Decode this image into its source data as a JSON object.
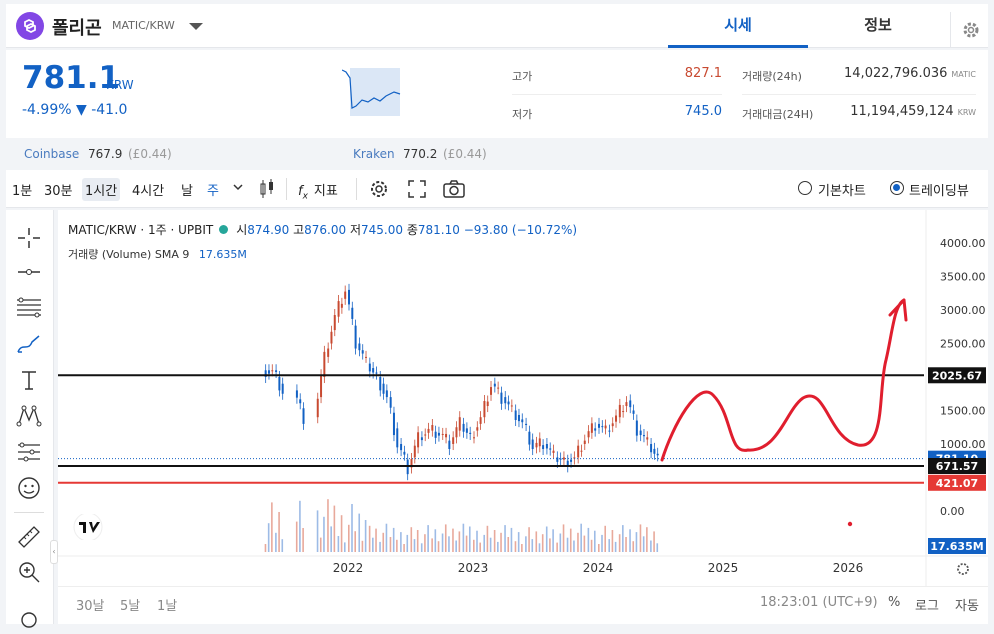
{
  "header": {
    "coin_name": "폴리곤",
    "pair": "MATIC/KRW",
    "tabs": [
      "시세",
      "정보"
    ],
    "settings_icon": "gear-icon"
  },
  "summary": {
    "price": "781.1",
    "price_unit": "KRW",
    "change_pct": "-4.99%",
    "change_abs": "▼ -41.0",
    "high_label": "고가",
    "high_value": "827.1",
    "low_label": "저가",
    "low_value": "745.0",
    "volume_label": "거래량(24h)",
    "volume_value": "14,022,796.036",
    "volume_unit": "MATIC",
    "amount_label": "거래대금(24H)",
    "amount_value": "11,194,459,124",
    "amount_unit": "KRW",
    "up_color": "#c84a31",
    "down_color": "#1261c4"
  },
  "exchanges": [
    {
      "name": "Coinbase",
      "price": "767.9",
      "diff": "(£0.44)"
    },
    {
      "name": "Kraken",
      "price": "770.2",
      "diff": "(£0.44)"
    }
  ],
  "toolbar": {
    "intervals": [
      "1분",
      "30분",
      "1시간",
      "4시간",
      "날",
      "주"
    ],
    "selected_interval": "1시간",
    "indicator_label": "지표",
    "basic_chart_label": "기본차트",
    "trading_view_label": "트레이딩뷰",
    "selected_view": "트레이딩뷰"
  },
  "legend": {
    "title": "MATIC/KRW · 1주 · UPBIT",
    "open_label": "시",
    "open": "874.90",
    "high_label": "고",
    "high": "876.00",
    "low_label": "저",
    "low": "745.00",
    "close_label": "종",
    "close": "781.10",
    "change": "−93.80 (−10.72%)",
    "volume_label": "거래량 (Volume)",
    "sma_label": "SMA 9",
    "sma_value": "17.635M"
  },
  "chart_data": {
    "type": "candlestick",
    "y_ticks": [
      "4000.00",
      "3500.00",
      "3000.00",
      "2500.00",
      "1500.00",
      "1000.00",
      "0.00"
    ],
    "x_ticks": [
      "2022",
      "2023",
      "2024",
      "2025",
      "2026"
    ],
    "ylim": [
      0,
      4000
    ],
    "price_markers": [
      {
        "label": "2025.67",
        "value": 2025.67,
        "color": "#111111"
      },
      {
        "label": "781.10",
        "value": 781.1,
        "color": "#1261c4"
      },
      {
        "label": "671.57",
        "value": 671.57,
        "color": "#111111"
      },
      {
        "label": "421.07",
        "value": 421.07,
        "color": "#e53935"
      },
      {
        "label": "17.635M",
        "value": 17.635,
        "color": "#1261c4"
      }
    ],
    "series": [
      {
        "name": "MATIC/KRW weekly close (approx.)",
        "x": [
          "2021-05",
          "2021-06",
          "2021-08",
          "2021-10",
          "2021-11",
          "2021-12",
          "2022-01",
          "2022-02",
          "2022-03",
          "2022-04",
          "2022-05",
          "2022-06",
          "2022-07",
          "2022-08",
          "2022-09",
          "2022-10",
          "2022-11",
          "2022-12",
          "2023-01",
          "2023-02",
          "2023-03",
          "2023-04",
          "2023-05",
          "2023-06",
          "2023-07",
          "2023-08",
          "2023-09",
          "2023-10",
          "2023-11",
          "2023-12",
          "2024-01",
          "2024-02",
          "2024-03",
          "2024-04",
          "2024-05",
          "2024-06"
        ],
        "values": [
          2100,
          1800,
          1400,
          2300,
          2900,
          3300,
          2500,
          2200,
          2000,
          1700,
          1000,
          650,
          1100,
          1200,
          1150,
          1000,
          1300,
          1100,
          1400,
          1900,
          1700,
          1500,
          1300,
          950,
          1000,
          800,
          750,
          800,
          1100,
          1300,
          1200,
          1400,
          1650,
          1200,
          1000,
          781.1
        ]
      }
    ]
  },
  "time": {
    "ranges": [
      "30날",
      "5날",
      "1날"
    ],
    "clock": "18:23:01 (UTC+9)",
    "scale_options": [
      "%",
      "로그",
      "자동"
    ]
  }
}
